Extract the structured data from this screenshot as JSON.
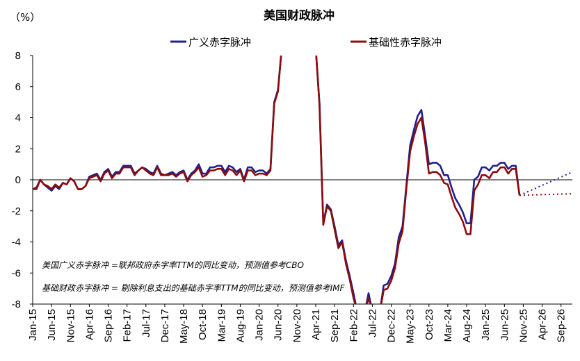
{
  "chart_data": {
    "type": "line",
    "title": "美国财政脉冲",
    "unit_label": "（%）",
    "ylim": [
      -8,
      8
    ],
    "yticks": [
      -8,
      -6,
      -4,
      -2,
      0,
      2,
      4,
      6,
      8
    ],
    "xlim": [
      "Jan-15",
      "Dec-26"
    ],
    "xticks": [
      "Jan-15",
      "Jun-15",
      "Nov-15",
      "Apr-16",
      "Sep-16",
      "Feb-17",
      "Jul-17",
      "Dec-17",
      "May-18",
      "Oct-18",
      "Mar-19",
      "Aug-19",
      "Jan-20",
      "Jun-20",
      "Nov-20",
      "Apr-21",
      "Sep-21",
      "Feb-22",
      "Jul-22",
      "Dec-22",
      "May-23",
      "Oct-23",
      "Mar-24",
      "Aug-24",
      "Jan-25",
      "Jun-25",
      "Nov-25",
      "Apr-26",
      "Sep-26"
    ],
    "grid": false,
    "legend_position": "top",
    "series": [
      {
        "name": "广义赤字脉冲",
        "color": "#1f1f8f",
        "points": [
          [
            "Jan-15",
            -0.6
          ],
          [
            "Feb-15",
            -0.5
          ],
          [
            "Mar-15",
            0.0
          ],
          [
            "Apr-15",
            -0.3
          ],
          [
            "May-15",
            -0.5
          ],
          [
            "Jun-15",
            -0.7
          ],
          [
            "Jul-15",
            -0.4
          ],
          [
            "Aug-15",
            -0.6
          ],
          [
            "Sep-15",
            -0.2
          ],
          [
            "Oct-15",
            -0.3
          ],
          [
            "Nov-15",
            0.1
          ],
          [
            "Dec-15",
            -0.1
          ],
          [
            "Jan-16",
            -0.6
          ],
          [
            "Feb-16",
            -0.6
          ],
          [
            "Mar-16",
            -0.4
          ],
          [
            "Apr-16",
            0.2
          ],
          [
            "May-16",
            0.3
          ],
          [
            "Jun-16",
            0.4
          ],
          [
            "Jul-16",
            0.0
          ],
          [
            "Aug-16",
            0.5
          ],
          [
            "Sep-16",
            0.7
          ],
          [
            "Oct-16",
            0.2
          ],
          [
            "Nov-16",
            0.5
          ],
          [
            "Dec-16",
            0.5
          ],
          [
            "Jan-17",
            0.9
          ],
          [
            "Feb-17",
            0.9
          ],
          [
            "Mar-17",
            0.9
          ],
          [
            "Apr-17",
            0.4
          ],
          [
            "May-17",
            0.6
          ],
          [
            "Jun-17",
            0.8
          ],
          [
            "Jul-17",
            0.7
          ],
          [
            "Aug-17",
            0.5
          ],
          [
            "Sep-17",
            0.4
          ],
          [
            "Oct-17",
            0.9
          ],
          [
            "Nov-17",
            0.4
          ],
          [
            "Dec-17",
            0.3
          ],
          [
            "Jan-18",
            0.4
          ],
          [
            "Feb-18",
            0.5
          ],
          [
            "Mar-18",
            0.3
          ],
          [
            "Apr-18",
            0.5
          ],
          [
            "May-18",
            0.6
          ],
          [
            "Jun-18",
            0.0
          ],
          [
            "Jul-18",
            0.4
          ],
          [
            "Aug-18",
            0.6
          ],
          [
            "Sep-18",
            1.0
          ],
          [
            "Oct-18",
            0.4
          ],
          [
            "Nov-18",
            0.4
          ],
          [
            "Dec-18",
            0.8
          ],
          [
            "Jan-19",
            0.8
          ],
          [
            "Feb-19",
            0.9
          ],
          [
            "Mar-19",
            0.9
          ],
          [
            "Apr-19",
            0.5
          ],
          [
            "May-19",
            0.9
          ],
          [
            "Jun-19",
            0.8
          ],
          [
            "Jul-19",
            0.5
          ],
          [
            "Aug-19",
            0.7
          ],
          [
            "Sep-19",
            0.0
          ],
          [
            "Oct-19",
            0.8
          ],
          [
            "Nov-19",
            0.8
          ],
          [
            "Dec-19",
            0.5
          ],
          [
            "Jan-20",
            0.6
          ],
          [
            "Feb-20",
            0.6
          ],
          [
            "Mar-20",
            0.4
          ],
          [
            "Apr-20",
            0.7
          ],
          [
            "May-20",
            5.0
          ],
          [
            "Jun-20",
            5.8
          ],
          [
            "Jul-20",
            8.5
          ],
          [
            "Apr-21",
            8.5
          ],
          [
            "May-21",
            4.9
          ],
          [
            "Jun-21",
            -2.8
          ],
          [
            "Jul-21",
            -1.6
          ],
          [
            "Aug-21",
            -1.9
          ],
          [
            "Sep-21",
            -3.0
          ],
          [
            "Oct-21",
            -4.2
          ],
          [
            "Nov-21",
            -3.9
          ],
          [
            "Dec-21",
            -5.2
          ],
          [
            "Jan-22",
            -6.2
          ],
          [
            "Feb-22",
            -7.3
          ],
          [
            "Mar-22",
            -8.5
          ],
          [
            "May-22",
            -8.5
          ],
          [
            "Jun-22",
            -7.3
          ],
          [
            "Jul-22",
            -8.5
          ],
          [
            "Sep-22",
            -8.5
          ],
          [
            "Oct-22",
            -6.8
          ],
          [
            "Nov-22",
            -6.7
          ],
          [
            "Dec-22",
            -6.2
          ],
          [
            "Jan-23",
            -5.4
          ],
          [
            "Feb-23",
            -3.7
          ],
          [
            "Mar-23",
            -3.0
          ],
          [
            "Apr-23",
            -0.4
          ],
          [
            "May-23",
            2.2
          ],
          [
            "Jun-23",
            3.2
          ],
          [
            "Jul-23",
            4.1
          ],
          [
            "Aug-23",
            4.5
          ],
          [
            "Sep-23",
            2.8
          ],
          [
            "Oct-23",
            1.0
          ],
          [
            "Nov-23",
            1.1
          ],
          [
            "Dec-23",
            1.1
          ],
          [
            "Jan-24",
            0.9
          ],
          [
            "Feb-24",
            0.3
          ],
          [
            "Mar-24",
            0.3
          ],
          [
            "Apr-24",
            -0.5
          ],
          [
            "May-24",
            -1.2
          ],
          [
            "Jun-24",
            -1.6
          ],
          [
            "Jul-24",
            -2.1
          ],
          [
            "Aug-24",
            -2.8
          ],
          [
            "Sep-24",
            -2.8
          ],
          [
            "Oct-24",
            0.0
          ],
          [
            "Nov-24",
            0.2
          ],
          [
            "Dec-24",
            0.8
          ],
          [
            "Jan-25",
            0.8
          ],
          [
            "Feb-25",
            0.6
          ],
          [
            "Mar-25",
            0.9
          ],
          [
            "Apr-25",
            0.9
          ],
          [
            "May-25",
            1.1
          ],
          [
            "Jun-25",
            1.1
          ],
          [
            "Jul-25",
            0.7
          ],
          [
            "Aug-25",
            0.9
          ],
          [
            "Sep-25",
            0.9
          ],
          [
            "Oct-25",
            -1.0
          ]
        ],
        "forecast": [
          [
            "Oct-25",
            -1.0
          ],
          [
            "Dec-26",
            0.5
          ]
        ]
      },
      {
        "name": "基础性赤字脉冲",
        "color": "#8b0d0d",
        "points": [
          [
            "Jan-15",
            -0.6
          ],
          [
            "Feb-15",
            -0.6
          ],
          [
            "Mar-15",
            0.0
          ],
          [
            "Apr-15",
            -0.3
          ],
          [
            "May-15",
            -0.4
          ],
          [
            "Jun-15",
            -0.6
          ],
          [
            "Jul-15",
            -0.3
          ],
          [
            "Aug-15",
            -0.5
          ],
          [
            "Sep-15",
            -0.2
          ],
          [
            "Oct-15",
            -0.3
          ],
          [
            "Nov-15",
            0.1
          ],
          [
            "Dec-15",
            -0.1
          ],
          [
            "Jan-16",
            -0.6
          ],
          [
            "Feb-16",
            -0.6
          ],
          [
            "Mar-16",
            -0.4
          ],
          [
            "Apr-16",
            0.1
          ],
          [
            "May-16",
            0.2
          ],
          [
            "Jun-16",
            0.3
          ],
          [
            "Jul-16",
            -0.1
          ],
          [
            "Aug-16",
            0.4
          ],
          [
            "Sep-16",
            0.6
          ],
          [
            "Oct-16",
            0.1
          ],
          [
            "Nov-16",
            0.4
          ],
          [
            "Dec-16",
            0.4
          ],
          [
            "Jan-17",
            0.8
          ],
          [
            "Feb-17",
            0.8
          ],
          [
            "Mar-17",
            0.8
          ],
          [
            "Apr-17",
            0.3
          ],
          [
            "May-17",
            0.6
          ],
          [
            "Jun-17",
            0.8
          ],
          [
            "Jul-17",
            0.6
          ],
          [
            "Aug-17",
            0.4
          ],
          [
            "Sep-17",
            0.3
          ],
          [
            "Oct-17",
            0.8
          ],
          [
            "Nov-17",
            0.3
          ],
          [
            "Dec-17",
            0.3
          ],
          [
            "Jan-18",
            0.3
          ],
          [
            "Feb-18",
            0.4
          ],
          [
            "Mar-18",
            0.2
          ],
          [
            "Apr-18",
            0.4
          ],
          [
            "May-18",
            0.5
          ],
          [
            "Jun-18",
            -0.1
          ],
          [
            "Jul-18",
            0.3
          ],
          [
            "Aug-18",
            0.5
          ],
          [
            "Sep-18",
            0.8
          ],
          [
            "Oct-18",
            0.2
          ],
          [
            "Nov-18",
            0.3
          ],
          [
            "Dec-18",
            0.6
          ],
          [
            "Jan-19",
            0.6
          ],
          [
            "Feb-19",
            0.7
          ],
          [
            "Mar-19",
            0.7
          ],
          [
            "Apr-19",
            0.3
          ],
          [
            "May-19",
            0.7
          ],
          [
            "Jun-19",
            0.6
          ],
          [
            "Jul-19",
            0.3
          ],
          [
            "Aug-19",
            0.6
          ],
          [
            "Sep-19",
            -0.1
          ],
          [
            "Oct-19",
            0.6
          ],
          [
            "Nov-19",
            0.6
          ],
          [
            "Dec-19",
            0.3
          ],
          [
            "Jan-20",
            0.4
          ],
          [
            "Feb-20",
            0.4
          ],
          [
            "Mar-20",
            0.3
          ],
          [
            "Apr-20",
            0.6
          ],
          [
            "May-20",
            4.9
          ],
          [
            "Jun-20",
            5.7
          ],
          [
            "Jul-20",
            8.5
          ],
          [
            "Apr-21",
            8.5
          ],
          [
            "May-21",
            4.8
          ],
          [
            "Jun-21",
            -2.9
          ],
          [
            "Jul-21",
            -1.7
          ],
          [
            "Aug-21",
            -2.0
          ],
          [
            "Sep-21",
            -3.2
          ],
          [
            "Oct-21",
            -4.4
          ],
          [
            "Nov-21",
            -4.0
          ],
          [
            "Dec-21",
            -5.4
          ],
          [
            "Jan-22",
            -6.4
          ],
          [
            "Feb-22",
            -7.6
          ],
          [
            "Mar-22",
            -8.5
          ],
          [
            "May-22",
            -8.5
          ],
          [
            "Jun-22",
            -7.6
          ],
          [
            "Jul-22",
            -8.5
          ],
          [
            "Sep-22",
            -8.5
          ],
          [
            "Oct-22",
            -7.1
          ],
          [
            "Nov-22",
            -7.0
          ],
          [
            "Dec-22",
            -6.5
          ],
          [
            "Jan-23",
            -5.7
          ],
          [
            "Feb-23",
            -4.1
          ],
          [
            "Mar-23",
            -3.3
          ],
          [
            "Apr-23",
            -0.6
          ],
          [
            "May-23",
            1.8
          ],
          [
            "Jun-23",
            2.8
          ],
          [
            "Jul-23",
            3.6
          ],
          [
            "Aug-23",
            4.0
          ],
          [
            "Sep-23",
            2.4
          ],
          [
            "Oct-23",
            0.4
          ],
          [
            "Nov-23",
            0.5
          ],
          [
            "Dec-23",
            0.5
          ],
          [
            "Jan-24",
            0.3
          ],
          [
            "Feb-24",
            -0.2
          ],
          [
            "Mar-24",
            -0.3
          ],
          [
            "Apr-24",
            -1.1
          ],
          [
            "May-24",
            -1.8
          ],
          [
            "Jun-24",
            -2.2
          ],
          [
            "Jul-24",
            -2.7
          ],
          [
            "Aug-24",
            -3.5
          ],
          [
            "Sep-24",
            -3.5
          ],
          [
            "Oct-24",
            -0.7
          ],
          [
            "Nov-24",
            -0.3
          ],
          [
            "Dec-24",
            0.3
          ],
          [
            "Jan-25",
            0.3
          ],
          [
            "Feb-25",
            0.1
          ],
          [
            "Mar-25",
            0.5
          ],
          [
            "Apr-25",
            0.5
          ],
          [
            "May-25",
            0.8
          ],
          [
            "Jun-25",
            0.8
          ],
          [
            "Jul-25",
            0.4
          ],
          [
            "Aug-25",
            0.7
          ],
          [
            "Sep-25",
            0.7
          ],
          [
            "Oct-25",
            -1.0
          ]
        ],
        "forecast": [
          [
            "Oct-25",
            -1.0
          ],
          [
            "Dec-26",
            -0.9
          ]
        ]
      }
    ],
    "annotations": [
      "美国广义赤字脉冲 =联邦政府赤字率TTM的同比变动，预测值参考CBO",
      "基础财政赤字脉冲 = 剔除利息支出的基础赤字率TTM的同比变动，预测值参考IMF"
    ]
  }
}
